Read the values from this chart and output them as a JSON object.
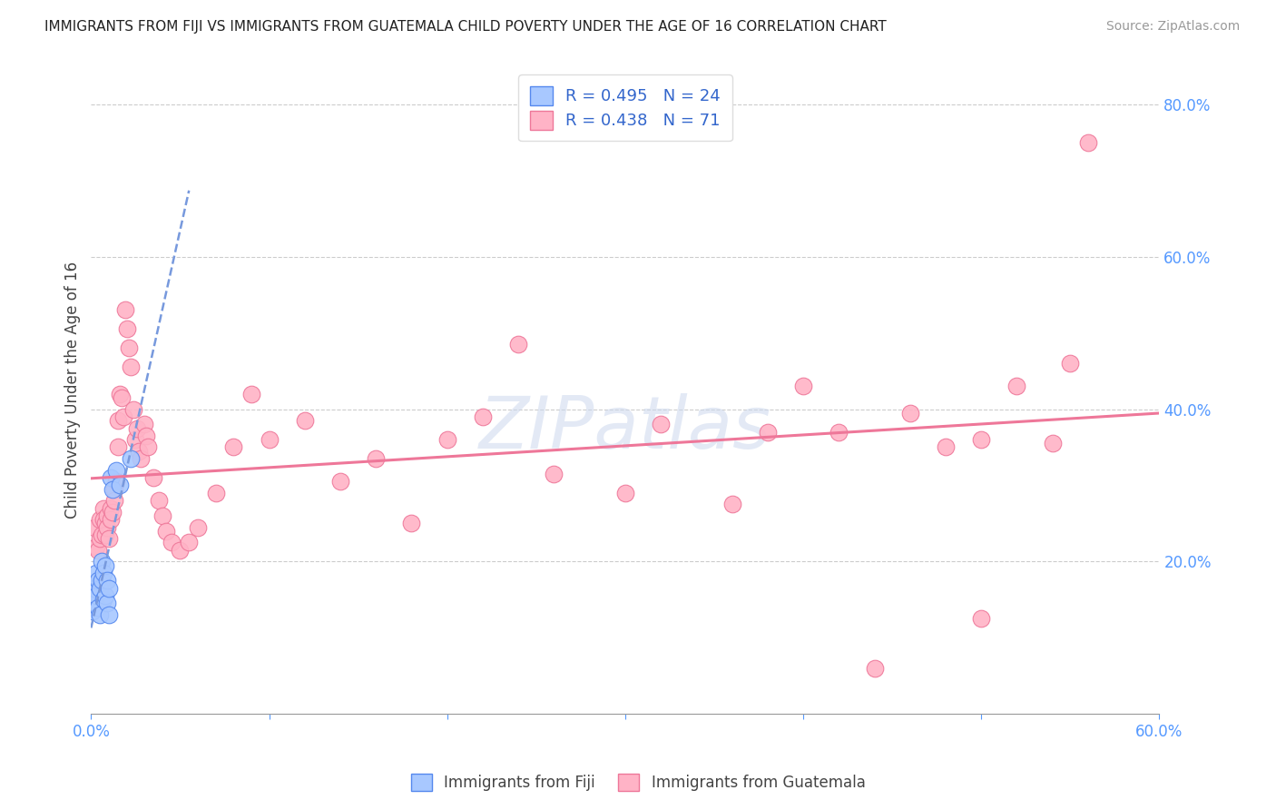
{
  "title": "IMMIGRANTS FROM FIJI VS IMMIGRANTS FROM GUATEMALA CHILD POVERTY UNDER THE AGE OF 16 CORRELATION CHART",
  "source": "Source: ZipAtlas.com",
  "ylabel": "Child Poverty Under the Age of 16",
  "xlim": [
    0.0,
    0.6
  ],
  "ylim": [
    0.0,
    0.85
  ],
  "y_ticks_right": [
    0.2,
    0.4,
    0.6,
    0.8
  ],
  "y_tick_labels_right": [
    "20.0%",
    "40.0%",
    "60.0%",
    "80.0%"
  ],
  "grid_color": "#cccccc",
  "fiji_color": "#a8c8ff",
  "fiji_edge_color": "#5588ee",
  "guatemala_color": "#ffb3c6",
  "guatemala_edge_color": "#ee7799",
  "fiji_line_color": "#7799dd",
  "guatemala_line_color": "#ee7799",
  "fiji_x": [
    0.001,
    0.002,
    0.002,
    0.003,
    0.003,
    0.004,
    0.004,
    0.005,
    0.005,
    0.006,
    0.006,
    0.007,
    0.007,
    0.008,
    0.008,
    0.009,
    0.009,
    0.01,
    0.01,
    0.011,
    0.012,
    0.014,
    0.016,
    0.022
  ],
  "fiji_y": [
    0.135,
    0.145,
    0.165,
    0.155,
    0.185,
    0.14,
    0.175,
    0.13,
    0.165,
    0.175,
    0.2,
    0.15,
    0.185,
    0.155,
    0.195,
    0.145,
    0.175,
    0.13,
    0.165,
    0.31,
    0.295,
    0.32,
    0.3,
    0.335
  ],
  "guat_x": [
    0.002,
    0.003,
    0.004,
    0.005,
    0.005,
    0.006,
    0.007,
    0.007,
    0.008,
    0.008,
    0.009,
    0.009,
    0.01,
    0.011,
    0.011,
    0.012,
    0.013,
    0.013,
    0.014,
    0.015,
    0.015,
    0.016,
    0.017,
    0.018,
    0.019,
    0.02,
    0.021,
    0.022,
    0.024,
    0.025,
    0.026,
    0.027,
    0.028,
    0.03,
    0.031,
    0.032,
    0.035,
    0.038,
    0.04,
    0.042,
    0.045,
    0.05,
    0.055,
    0.06,
    0.07,
    0.08,
    0.09,
    0.1,
    0.12,
    0.14,
    0.16,
    0.18,
    0.2,
    0.22,
    0.24,
    0.26,
    0.3,
    0.32,
    0.36,
    0.38,
    0.4,
    0.42,
    0.44,
    0.46,
    0.48,
    0.5,
    0.52,
    0.54,
    0.55,
    0.56,
    0.5
  ],
  "guat_y": [
    0.245,
    0.22,
    0.215,
    0.255,
    0.23,
    0.235,
    0.27,
    0.255,
    0.25,
    0.235,
    0.26,
    0.245,
    0.23,
    0.27,
    0.255,
    0.265,
    0.295,
    0.28,
    0.305,
    0.35,
    0.385,
    0.42,
    0.415,
    0.39,
    0.53,
    0.505,
    0.48,
    0.455,
    0.4,
    0.36,
    0.375,
    0.345,
    0.335,
    0.38,
    0.365,
    0.35,
    0.31,
    0.28,
    0.26,
    0.24,
    0.225,
    0.215,
    0.225,
    0.245,
    0.29,
    0.35,
    0.42,
    0.36,
    0.385,
    0.305,
    0.335,
    0.25,
    0.36,
    0.39,
    0.485,
    0.315,
    0.29,
    0.38,
    0.275,
    0.37,
    0.43,
    0.37,
    0.06,
    0.395,
    0.35,
    0.36,
    0.43,
    0.355,
    0.46,
    0.75,
    0.125
  ]
}
